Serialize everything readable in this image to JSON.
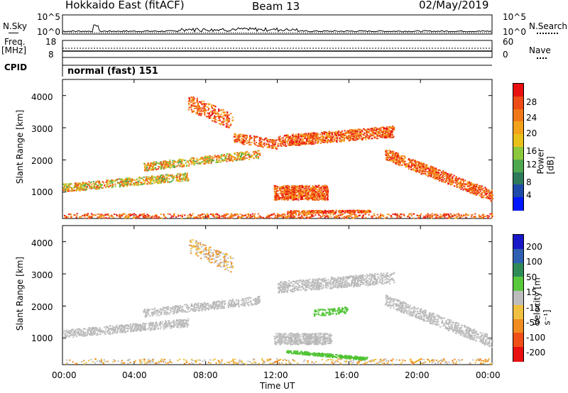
{
  "header": {
    "title": "Hokkaido East (fitACF)",
    "beam": "Beam 13",
    "date": "02/May/2019"
  },
  "side_labels": {
    "nsky": "N.Sky",
    "freq": "Freq.",
    "mhz": "[MHz]",
    "cpid": "CPID",
    "nsearch": "N.Search",
    "nave": "Nave"
  },
  "small_ticks": {
    "nsky_top": "10^5",
    "nsky_bottom": "10^0",
    "nsearch_top": "10^5",
    "nsearch_bottom": "10^0",
    "freq_top": "18",
    "freq_bottom": "8",
    "nave_top": "60",
    "nave_bottom": "0"
  },
  "cpid_text": "normal (fast) 151",
  "chart_data": [
    {
      "type": "heatmap",
      "name": "power",
      "ylabel": "Slant Range [km]",
      "ylim": [
        180,
        4500
      ],
      "yticks": [
        "1000",
        "2000",
        "3000",
        "4000"
      ],
      "colorbar_label": "Power [dB]",
      "colorbar_ticks": [
        "4",
        "8",
        "12",
        "16",
        "20",
        "24",
        "28"
      ],
      "colorbar_colors": [
        "#0018ff",
        "#1e4ba8",
        "#2e7a5a",
        "#4fa84f",
        "#8cc83c",
        "#e8c21a",
        "#f4a21a",
        "#f07818",
        "#ee4b16",
        "#e81010"
      ],
      "grid": false
    },
    {
      "type": "heatmap",
      "name": "velocity",
      "ylabel": "Slant Range [km]",
      "ylim": [
        180,
        4500
      ],
      "yticks": [
        "1000",
        "2000",
        "3000",
        "4000"
      ],
      "xlabel": "Time UT",
      "xticks": [
        "00:00",
        "04:00",
        "08:00",
        "12:00",
        "16:00",
        "20:00",
        "00:00"
      ],
      "colorbar_label": "Velocity [m s⁻¹]",
      "colorbar_ticks": [
        "200",
        "100",
        "50",
        "15",
        "-15",
        "-50",
        "-100",
        "-200"
      ],
      "colorbar_colors": [
        "#1818c8",
        "#2f5fb0",
        "#2e8b57",
        "#58c83c",
        "#bdbdbd",
        "#f0c040",
        "#f08c20",
        "#f05018",
        "#e81010"
      ],
      "grid": false
    }
  ]
}
